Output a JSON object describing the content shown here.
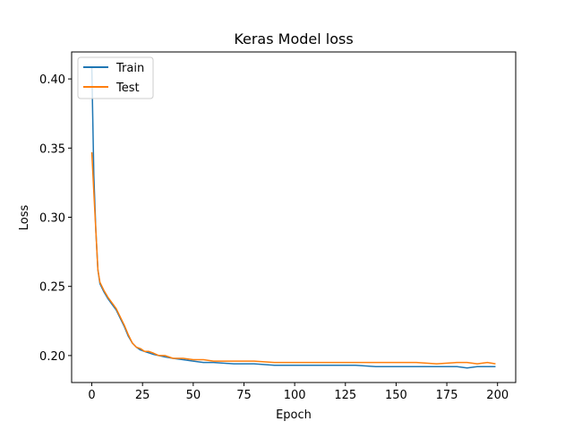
{
  "chart_data": {
    "type": "line",
    "title": "Keras Model loss",
    "xlabel": "Epoch",
    "ylabel": "Loss",
    "xlim": [
      -9.95,
      208.95
    ],
    "ylim": [
      0.1805,
      0.4195
    ],
    "xticks": [
      0,
      25,
      50,
      75,
      100,
      125,
      150,
      175,
      200
    ],
    "yticks": [
      0.2,
      0.25,
      0.3,
      0.35,
      0.4
    ],
    "xtick_labels": [
      "0",
      "25",
      "50",
      "75",
      "100",
      "125",
      "150",
      "175",
      "200"
    ],
    "ytick_labels": [
      "0.20",
      "0.25",
      "0.30",
      "0.35",
      "0.40"
    ],
    "grid": false,
    "legend_position": "upper left",
    "series": [
      {
        "name": "Train",
        "color": "#1f77b4",
        "x": [
          0,
          1,
          2,
          3,
          4,
          5,
          6,
          8,
          10,
          12,
          14,
          16,
          18,
          20,
          22,
          24,
          26,
          28,
          30,
          33,
          36,
          40,
          45,
          50,
          55,
          60,
          70,
          80,
          90,
          100,
          110,
          120,
          130,
          140,
          150,
          160,
          170,
          180,
          185,
          190,
          199
        ],
        "y": [
          0.408,
          0.33,
          0.29,
          0.262,
          0.252,
          0.249,
          0.246,
          0.241,
          0.237,
          0.233,
          0.227,
          0.221,
          0.214,
          0.209,
          0.206,
          0.204,
          0.203,
          0.202,
          0.201,
          0.2,
          0.199,
          0.198,
          0.197,
          0.196,
          0.195,
          0.195,
          0.194,
          0.194,
          0.193,
          0.193,
          0.193,
          0.193,
          0.193,
          0.192,
          0.192,
          0.192,
          0.192,
          0.192,
          0.191,
          0.192,
          0.192
        ]
      },
      {
        "name": "Test",
        "color": "#ff7f0e",
        "x": [
          0,
          1,
          2,
          3,
          4,
          5,
          6,
          8,
          10,
          12,
          14,
          16,
          18,
          20,
          22,
          24,
          26,
          28,
          30,
          33,
          36,
          40,
          45,
          50,
          55,
          60,
          70,
          80,
          90,
          100,
          110,
          120,
          130,
          140,
          150,
          160,
          170,
          180,
          185,
          190,
          195,
          199
        ],
        "y": [
          0.347,
          0.318,
          0.29,
          0.262,
          0.253,
          0.25,
          0.247,
          0.242,
          0.238,
          0.234,
          0.228,
          0.222,
          0.215,
          0.209,
          0.206,
          0.205,
          0.203,
          0.203,
          0.202,
          0.2,
          0.2,
          0.198,
          0.198,
          0.197,
          0.197,
          0.196,
          0.196,
          0.196,
          0.195,
          0.195,
          0.195,
          0.195,
          0.195,
          0.195,
          0.195,
          0.195,
          0.194,
          0.195,
          0.195,
          0.194,
          0.195,
          0.194
        ]
      }
    ]
  }
}
